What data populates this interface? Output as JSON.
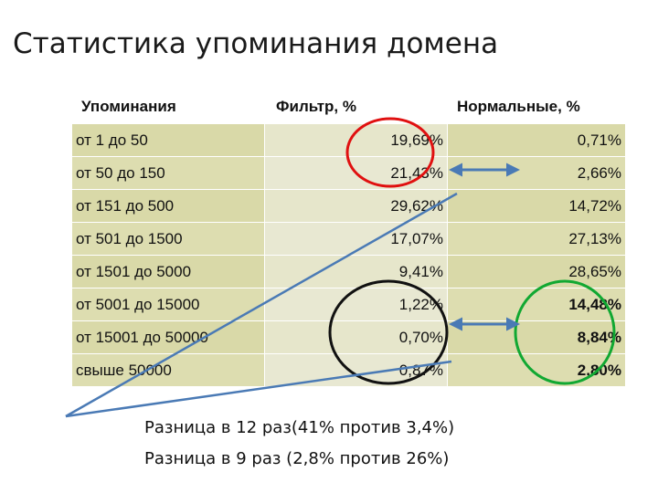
{
  "title": "Статистика упоминания домена",
  "table": {
    "headers": [
      "Упоминания",
      "Фильтр, %",
      "Нормальные, %"
    ],
    "rows": [
      {
        "range": "от 1 до 50",
        "filter": "19,69%",
        "normal": "0,71%"
      },
      {
        "range": "от 50 до 150",
        "filter": "21,43%",
        "normal": "2,66%"
      },
      {
        "range": "от 151 до 500",
        "filter": "29,62%",
        "normal": "14,72%"
      },
      {
        "range": "от 501 до 1500",
        "filter": "17,07%",
        "normal": "27,13%"
      },
      {
        "range": "от 1501 до 5000",
        "filter": "9,41%",
        "normal": "28,65%"
      },
      {
        "range": "от 5001 до 15000",
        "filter": "1,22%",
        "normal": "14,48%"
      },
      {
        "range": "от 15001 до 50000",
        "filter": "0,70%",
        "normal": "8,84%"
      },
      {
        "range": "свыше 50000",
        "filter": "0,87%",
        "normal": "2,80%"
      }
    ]
  },
  "notes": [
    "Разница в 12 раз(41% против 3,4%)",
    "Разница в 9 раз (2,8% против 26%)"
  ],
  "colors": {
    "red_highlight": "#e01010",
    "green_highlight": "#11a832",
    "black_highlight": "#111111",
    "arrow_blue": "#4a7ab5",
    "row_bg": "#ddddb0"
  }
}
